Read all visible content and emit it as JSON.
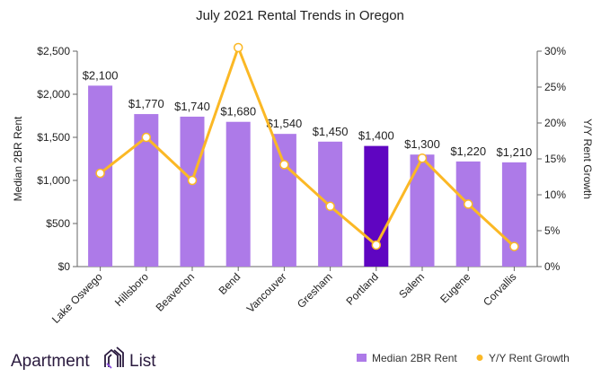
{
  "chart_data": {
    "type": "bar+line",
    "title": "July 2021 Rental Trends in Oregon",
    "categories": [
      "Lake Oswego",
      "Hillsboro",
      "Beaverton",
      "Bend",
      "Vancouver",
      "Gresham",
      "Portland",
      "Salem",
      "Eugene",
      "Corvallis"
    ],
    "series": [
      {
        "name": "Median 2BR Rent",
        "type": "bar",
        "axis": "left",
        "values": [
          2100,
          1770,
          1740,
          1680,
          1540,
          1450,
          1400,
          1300,
          1220,
          1210
        ],
        "data_labels": [
          "$2,100",
          "$1,770",
          "$1,740",
          "$1,680",
          "$1,540",
          "$1,450",
          "$1,400",
          "$1,300",
          "$1,220",
          "$1,210"
        ],
        "color": "#ad7ae8",
        "highlight_category": "Portland",
        "highlight_color": "#5f05c1"
      },
      {
        "name": "Y/Y Rent Growth",
        "type": "line",
        "axis": "right",
        "values": [
          13.0,
          18.0,
          12.0,
          30.5,
          14.2,
          8.4,
          3.0,
          15.1,
          8.7,
          2.8
        ],
        "color": "#fbb825"
      }
    ],
    "ylabel": "Median 2BR Rent",
    "ylim": [
      0,
      2500
    ],
    "yticks": [
      "$0",
      "$500",
      "$1,000",
      "$1,500",
      "$2,000",
      "$2,500"
    ],
    "y2label": "Y/Y Rent Growth",
    "y2lim": [
      0,
      30
    ],
    "y2ticks": [
      "0%",
      "5%",
      "10%",
      "15%",
      "20%",
      "25%",
      "30%"
    ],
    "grid": false,
    "legend": "bottom-right"
  },
  "brand": {
    "logo_text": "Apartment List"
  }
}
